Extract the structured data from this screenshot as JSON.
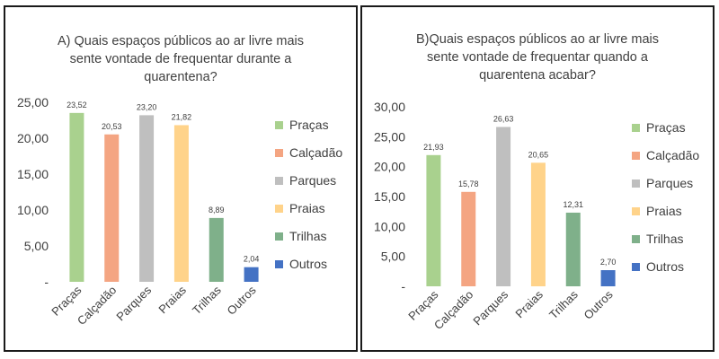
{
  "chart_data": [
    {
      "type": "bar",
      "title_lines": [
        "A) Quais espaços públicos ao ar livre mais",
        "sente vontade de frequentar durante a",
        "quarentena?"
      ],
      "categories": [
        "Praças",
        "Calçadão",
        "Parques",
        "Praias",
        "Trilhas",
        "Outros"
      ],
      "values": [
        23.52,
        20.53,
        23.2,
        21.82,
        8.89,
        2.04
      ],
      "value_labels": [
        "23,52",
        "20,53",
        "23,20",
        "21,82",
        "8,89",
        "2,04"
      ],
      "colors": [
        "#a9d18e",
        "#f4a582",
        "#bfbfbf",
        "#ffd38a",
        "#7fb08a",
        "#4472c4"
      ],
      "ylim": [
        0,
        25
      ],
      "yticks": [
        0,
        5,
        10,
        15,
        20,
        25
      ],
      "ytick_labels": [
        "-",
        "5,00",
        "10,00",
        "15,00",
        "20,00",
        "25,00"
      ],
      "legend": [
        "Praças",
        "Calçadão",
        "Parques",
        "Praias",
        "Trilhas",
        "Outros"
      ],
      "legend_placement": "right",
      "grid": false
    },
    {
      "type": "bar",
      "title_lines": [
        "B)Quais espaços públicos ao ar livre mais",
        "sente vontade de frequentar quando a",
        "quarentena acabar?"
      ],
      "categories": [
        "Praças",
        "Calçadão",
        "Parques",
        "Praias",
        "Trilhas",
        "Outros"
      ],
      "values": [
        21.93,
        15.78,
        26.63,
        20.65,
        12.31,
        2.7
      ],
      "value_labels": [
        "21,93",
        "15,78",
        "26,63",
        "20,65",
        "12,31",
        "2,70"
      ],
      "colors": [
        "#a9d18e",
        "#f4a582",
        "#bfbfbf",
        "#ffd38a",
        "#7fb08a",
        "#4472c4"
      ],
      "ylim": [
        0,
        30
      ],
      "yticks": [
        0,
        5,
        10,
        15,
        20,
        25,
        30
      ],
      "ytick_labels": [
        "-",
        "5,00",
        "10,00",
        "15,00",
        "20,00",
        "25,00",
        "30,00"
      ],
      "legend": [
        "Praças",
        "Calçadão",
        "Parques",
        "Praias",
        "Trilhas",
        "Outros"
      ],
      "legend_placement": "right",
      "grid": false
    }
  ]
}
